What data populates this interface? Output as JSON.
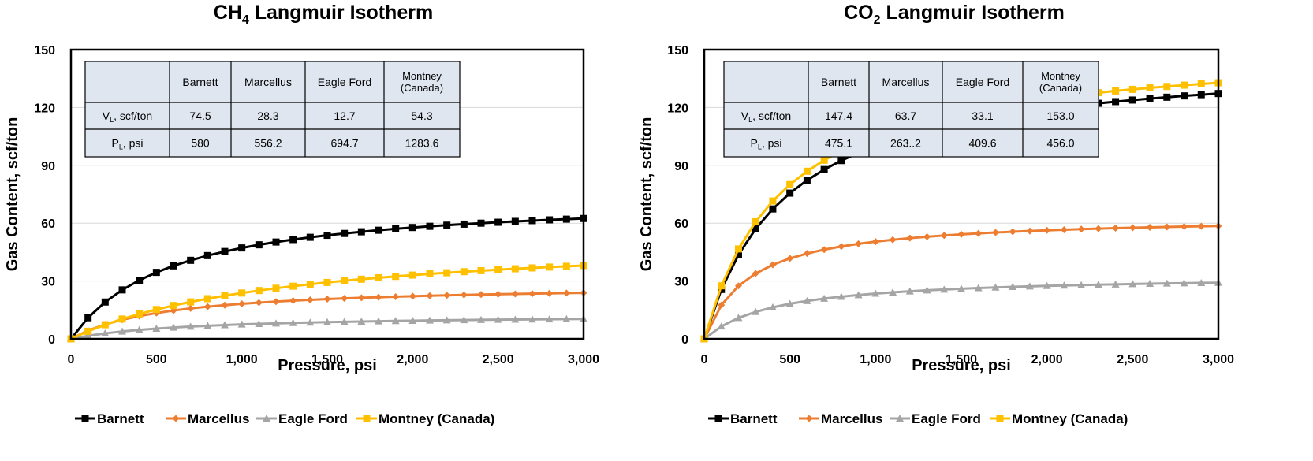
{
  "chart_data": [
    {
      "type": "line",
      "title_main": "CH",
      "title_sub": "4",
      "title_rest": " Langmuir Isotherm",
      "xlabel": "Pressure, psi",
      "ylabel": "Gas Content, scf/ton",
      "xlim": [
        0,
        3000
      ],
      "ylim": [
        0,
        150
      ],
      "xticks": [
        0,
        500,
        1000,
        1500,
        2000,
        2500,
        3000
      ],
      "xtick_labels": [
        "0",
        "500",
        "1,000",
        "1,500",
        "2,000",
        "2,500",
        "3,000"
      ],
      "yticks": [
        0,
        30,
        60,
        90,
        120,
        150
      ],
      "ytick_labels": [
        "0",
        "30",
        "60",
        "90",
        "120",
        "150"
      ],
      "grid": "horizontal",
      "legend_position": "bottom",
      "series": [
        {
          "name": "Barnett",
          "color": "#000000",
          "marker": "square",
          "VL": 74.5,
          "PL": 580
        },
        {
          "name": "Marcellus",
          "color": "#ED7D31",
          "marker": "diamond",
          "VL": 28.3,
          "PL": 556.2
        },
        {
          "name": "Eagle Ford",
          "color": "#A5A5A5",
          "marker": "triangle",
          "VL": 12.7,
          "PL": 694.7
        },
        {
          "name": "Montney (Canada)",
          "color": "#FFC000",
          "marker": "square",
          "VL": 54.3,
          "PL": 1283.6
        }
      ],
      "table": {
        "headers": [
          "",
          "Barnett",
          "Marcellus",
          "Eagle Ford",
          "Montney\n(Canada)"
        ],
        "rows": [
          {
            "label_main": "V",
            "label_sub": "L",
            "label_rest": ", scf/ton",
            "values": [
              "74.5",
              "28.3",
              "12.7",
              "54.3"
            ]
          },
          {
            "label_main": "P",
            "label_sub": "L",
            "label_rest": ", psi",
            "values": [
              "580",
              "556.2",
              "694.7",
              "1283.6"
            ]
          }
        ]
      }
    },
    {
      "type": "line",
      "title_main": "CO",
      "title_sub": "2",
      "title_rest": " Langmuir Isotherm",
      "xlabel": "Pressure, psi",
      "ylabel": "Gas Content, scf/ton",
      "xlim": [
        0,
        3000
      ],
      "ylim": [
        0,
        150
      ],
      "xticks": [
        0,
        500,
        1000,
        1500,
        2000,
        2500,
        3000
      ],
      "xtick_labels": [
        "0",
        "500",
        "1,000",
        "1,500",
        "2,000",
        "2,500",
        "3,000"
      ],
      "yticks": [
        0,
        30,
        60,
        90,
        120,
        150
      ],
      "ytick_labels": [
        "0",
        "30",
        "60",
        "90",
        "120",
        "150"
      ],
      "grid": "horizontal",
      "legend_position": "bottom",
      "series": [
        {
          "name": "Barnett",
          "color": "#000000",
          "marker": "square",
          "VL": 147.4,
          "PL": 475.1
        },
        {
          "name": "Marcellus",
          "color": "#ED7D31",
          "marker": "diamond",
          "VL": 63.7,
          "PL": 263.2
        },
        {
          "name": "Eagle Ford",
          "color": "#A5A5A5",
          "marker": "triangle",
          "VL": 33.1,
          "PL": 409.6
        },
        {
          "name": "Montney (Canada)",
          "color": "#FFC000",
          "marker": "square",
          "VL": 153.0,
          "PL": 456.0
        }
      ],
      "table": {
        "headers": [
          "",
          "Barnett",
          "Marcellus",
          "Eagle Ford",
          "Montney\n(Canada)"
        ],
        "rows": [
          {
            "label_main": "V",
            "label_sub": "L",
            "label_rest": ", scf/ton",
            "values": [
              "147.4",
              "63.7",
              "33.1",
              "153.0"
            ]
          },
          {
            "label_main": "P",
            "label_sub": "L",
            "label_rest": ", psi",
            "values": [
              "475.1",
              "263..2",
              "409.6",
              "456.0"
            ]
          }
        ]
      }
    }
  ]
}
